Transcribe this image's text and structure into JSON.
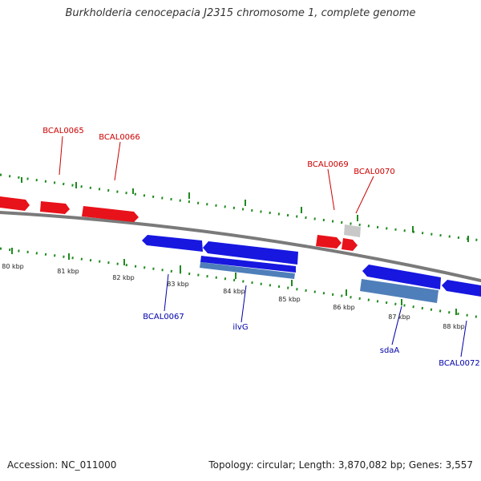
{
  "title": "Burkholderia cenocepacia J2315 chromosome 1, complete genome",
  "footer": {
    "accession": "Accession: NC_011000",
    "stats": "Topology: circular; Length: 3,870,082 bp; Genes: 3,557"
  },
  "colors": {
    "forward_gene": "#e8121a",
    "reverse_gene": "#1717e0",
    "rna_feature": "#4f7fba",
    "pseudo_feature": "#c8c8c8",
    "backbone": "#7a7a7a",
    "tick": "#1f8a1f",
    "forward_label": "#cc0000",
    "reverse_label": "#0000aa"
  },
  "ruler": {
    "unit": "kbp",
    "ticks": [
      "80 kbp",
      "81 kbp",
      "82 kbp",
      "83 kbp",
      "84 kbp",
      "85 kbp",
      "86 kbp",
      "87 kbp",
      "88 kbp"
    ]
  },
  "labels": {
    "forward": [
      "BCAL0065",
      "BCAL0066",
      "BCAL0069",
      "BCAL0070"
    ],
    "reverse": [
      "BCAL0067",
      "ilvG",
      "sdaA",
      "BCAL0072"
    ]
  }
}
